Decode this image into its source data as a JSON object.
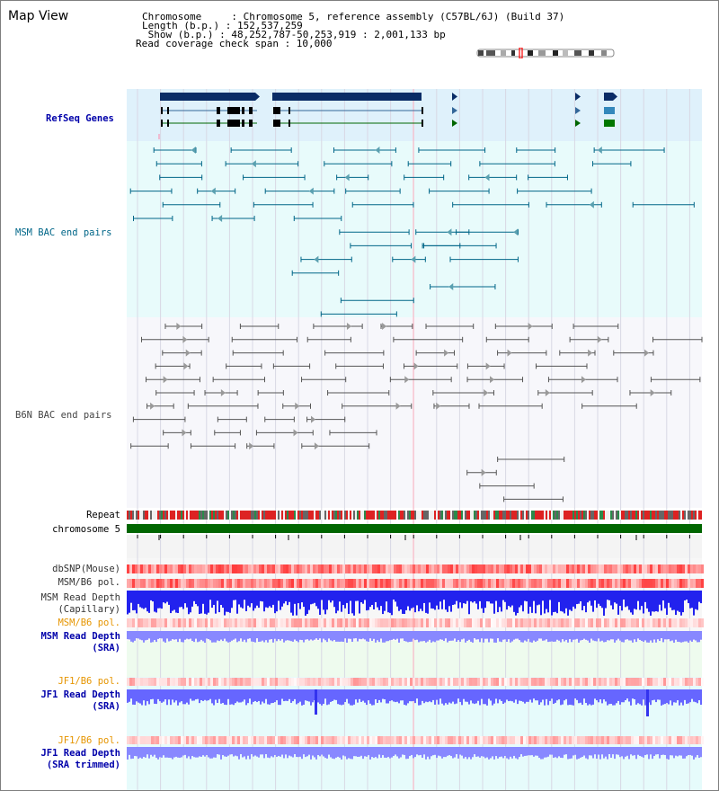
{
  "page": {
    "title": "Map View"
  },
  "info": {
    "chromosome_line": "Chromosome     : Chromosome 5, reference assembly (C57BL/6J) (Build 37)",
    "length_line": "Length (b.p.) : 152,537,259",
    "show_line": " Show (b.p.) : 48,252,787-50,253,919 : 2,001,133 bp",
    "coverage_line": "Read coverage check span : 10,000"
  },
  "tracks": {
    "refseq": "RefSeq Genes",
    "msm_bac": "MSM BAC end pairs",
    "b6n_bac": "B6N BAC end pairs",
    "repeat": "Repeat",
    "chromosome": "chromosome 5",
    "dbsnp": "dbSNP(Mouse)",
    "msm_b6_pol": "MSM/B6 pol.",
    "msm_read_depth_cap_1": "MSM Read Depth",
    "msm_read_depth_cap_2": "(Capillary)",
    "msm_b6_pol_2": "MSM/B6 pol.",
    "msm_read_depth_sra_1": "MSM Read Depth",
    "msm_read_depth_sra_2": "(SRA)",
    "jf1_b6_pol": "JF1/B6 pol.",
    "jf1_read_depth_1": "JF1 Read Depth",
    "jf1_read_depth_2": "(SRA)",
    "jf1_b6_pol_2": "JF1/B6 pol.",
    "jf1_read_depth_trim_1": "JF1 Read Depth",
    "jf1_read_depth_trim_2": "(SRA trimmed)"
  },
  "axis": {
    "ticks": [
      "48400000",
      "48800000",
      "49200000",
      "49600000",
      "50000000"
    ]
  },
  "colors": {
    "refseq_bg": "#dff1fb",
    "msm_bg": "#e8fbfb",
    "b6n_bg": "#f7f7fb",
    "chrom_bar": "#006600",
    "refseq_label": "#0000aa",
    "msm_label": "#006688",
    "b6n_label": "#444444",
    "orange_label": "#e69500",
    "blue_label": "#0000aa",
    "depth_blue": "#4040ff"
  }
}
